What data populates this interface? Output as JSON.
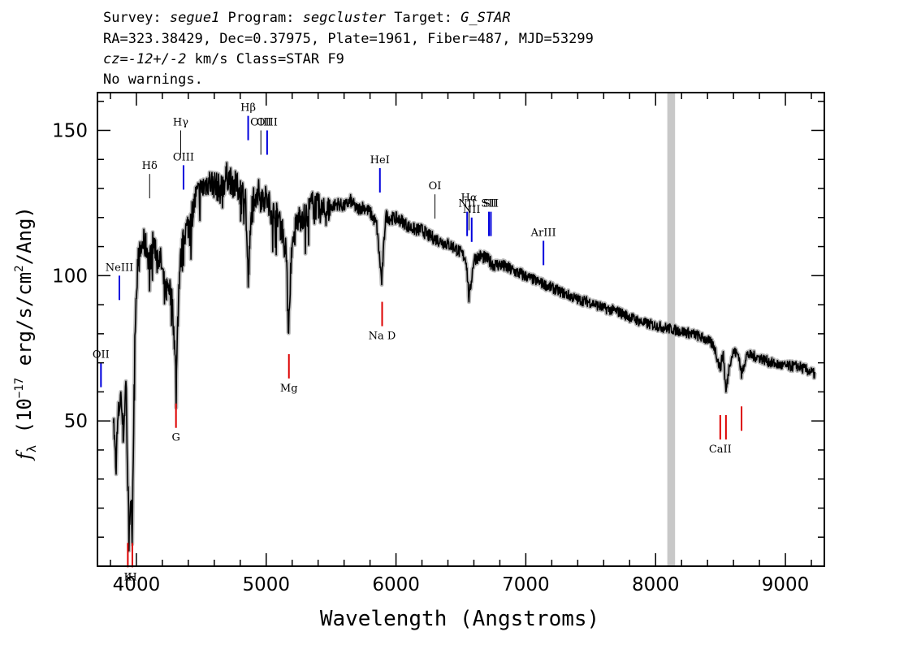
{
  "header": {
    "survey_label": "Survey: ",
    "survey": "segue1",
    "program_label": " Program: ",
    "program": "segcluster",
    "target_label": " Target: ",
    "target": "G_STAR",
    "line2": "RA=323.38429, Dec=0.37975, Plate=1961, Fiber=487, MJD=53299",
    "cz": "cz=-12+/-2",
    "line3_rest": " km/s Class=STAR F9",
    "line4": "No warnings."
  },
  "chart_data": {
    "type": "line",
    "title": "",
    "xlabel": "Wavelength (Angstroms)",
    "ylabel": "f_λ (10^-17 erg/s/cm²/Ang)",
    "xlim": [
      3700,
      9300
    ],
    "ylim": [
      0,
      163
    ],
    "x_ticks": [
      4000,
      5000,
      6000,
      7000,
      8000,
      9000
    ],
    "y_ticks": [
      50,
      100,
      150
    ],
    "grid": false,
    "masked_region": [
      8090,
      8150
    ],
    "colors": {
      "flux": "#000000",
      "error": "#bbbbbb",
      "emission": "#0000dd",
      "absorption": "#dd0000",
      "mask": "#c8c8c8"
    },
    "series": [
      {
        "x": [
          3820,
          3840,
          3860,
          3880,
          3900,
          3920,
          3935,
          3950,
          3970,
          3990,
          4010,
          4030,
          4050,
          4080,
          4101,
          4130,
          4160,
          4190,
          4220,
          4250,
          4280,
          4305,
          4330,
          4340,
          4370,
          4400,
          4430,
          4460,
          4500,
          4550,
          4600,
          4650,
          4700,
          4750,
          4800,
          4840,
          4861,
          4890,
          4920,
          4960,
          5000,
          5050,
          5100,
          5150,
          5172,
          5190,
          5230,
          5270,
          5300,
          5350,
          5400,
          5450,
          5500,
          5550,
          5600,
          5650,
          5700,
          5750,
          5800,
          5850,
          5890,
          5920,
          5950,
          6000,
          6050,
          6100,
          6150,
          6200,
          6250,
          6300,
          6350,
          6400,
          6450,
          6500,
          6540,
          6563,
          6600,
          6650,
          6700,
          6750,
          6800,
          6900,
          7000,
          7100,
          7200,
          7300,
          7400,
          7500,
          7600,
          7700,
          7800,
          7900,
          8000,
          8100,
          8200,
          8300,
          8400,
          8450,
          8498,
          8520,
          8542,
          8570,
          8600,
          8640,
          8662,
          8700,
          8800,
          8900,
          9000,
          9100,
          9200,
          9230
        ],
        "y": [
          55,
          35,
          52,
          60,
          45,
          65,
          25,
          18,
          20,
          85,
          105,
          108,
          112,
          110,
          105,
          112,
          108,
          105,
          95,
          98,
          90,
          65,
          100,
          105,
          115,
          118,
          122,
          128,
          130,
          133,
          132,
          130,
          135,
          132,
          130,
          128,
          98,
          125,
          130,
          128,
          127,
          122,
          120,
          112,
          82,
          105,
          118,
          122,
          120,
          125,
          124,
          122,
          124,
          125,
          124,
          126,
          123,
          124,
          122,
          118,
          98,
          121,
          120,
          120,
          119,
          117,
          116,
          116,
          114,
          113,
          112,
          111,
          110,
          108,
          106,
          92,
          106,
          107,
          106,
          104,
          104,
          102,
          100,
          98,
          96,
          94,
          92,
          91,
          89,
          88,
          86,
          84,
          83,
          82,
          81,
          80,
          78,
          76,
          68,
          74,
          60,
          70,
          74,
          73,
          66,
          73,
          72,
          70,
          69,
          69,
          67,
          66
        ]
      }
    ],
    "line_labels": [
      {
        "label": "OII",
        "wave": 3727,
        "kind": "emission",
        "y": 70
      },
      {
        "label": "NeIII",
        "wave": 3869,
        "kind": "emission",
        "y": 100
      },
      {
        "label": "K",
        "wave": 3934,
        "kind": "absorption",
        "y": 8
      },
      {
        "label": "H",
        "wave": 3969,
        "kind": "absorption",
        "y": 8
      },
      {
        "label": "Hδ",
        "wave": 4102,
        "kind": "balmer",
        "y": 135
      },
      {
        "label": "G",
        "wave": 4305,
        "kind": "absorption",
        "y": 56
      },
      {
        "label": "Hγ",
        "wave": 4341,
        "kind": "balmer",
        "y": 150
      },
      {
        "label": "OIII",
        "wave": 4363,
        "kind": "emission",
        "y": 138
      },
      {
        "label": "Hβ",
        "wave": 4861,
        "kind": "emission",
        "y": 155
      },
      {
        "label": "OIII",
        "wave": 4959,
        "kind": "balmer",
        "y": 150
      },
      {
        "label": "OIII",
        "wave": 5007,
        "kind": "emission",
        "y": 150
      },
      {
        "label": "Mg",
        "wave": 5175,
        "kind": "absorption",
        "y": 73
      },
      {
        "label": "HeI",
        "wave": 5876,
        "kind": "emission",
        "y": 137
      },
      {
        "label": "Na D",
        "wave": 5893,
        "kind": "absorption",
        "y": 91
      },
      {
        "label": "OI",
        "wave": 6300,
        "kind": "balmer",
        "y": 128
      },
      {
        "label": "NII",
        "wave": 6548,
        "kind": "emission",
        "y": 122
      },
      {
        "label": "Hα",
        "wave": 6563,
        "kind": "balmer",
        "y": 124
      },
      {
        "label": "NII",
        "wave": 6583,
        "kind": "emission",
        "y": 120
      },
      {
        "label": "SII",
        "wave": 6716,
        "kind": "emission",
        "y": 122
      },
      {
        "label": "SII",
        "wave": 6731,
        "kind": "emission",
        "y": 122
      },
      {
        "label": "ArIII",
        "wave": 7136,
        "kind": "emission",
        "y": 112
      },
      {
        "label": "CaII",
        "wave": 8498,
        "kind": "absorption",
        "y": 52
      },
      {
        "label": "",
        "wave": 8542,
        "kind": "absorption",
        "y": 52
      },
      {
        "label": "",
        "wave": 8662,
        "kind": "absorption",
        "y": 55
      }
    ]
  }
}
